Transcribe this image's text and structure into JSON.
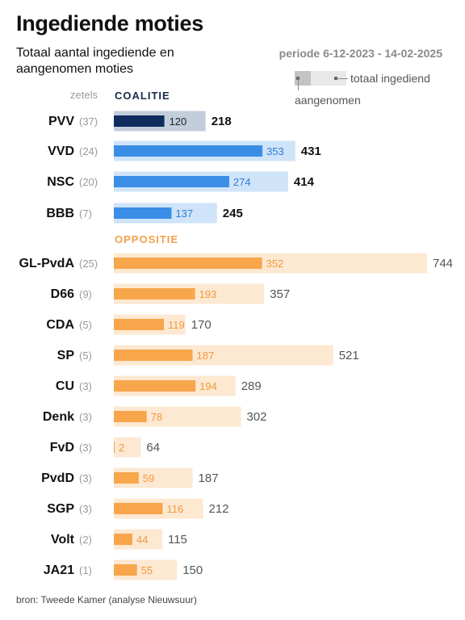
{
  "header": {
    "title": "Ingediende moties",
    "subtitle": "Totaal aantal ingediende en aangenomen moties",
    "period": "periode 6-12-2023 - 14-02-2025"
  },
  "legend": {
    "total_label": "totaal ingediend",
    "adopted_label": "aangenomen"
  },
  "seats_header": "zetels",
  "groups": {
    "coalition": "COALITIE",
    "opposition": "OPPOSITIE"
  },
  "source": "bron: Tweede Kamer (analyse Nieuwsuur)",
  "colors": {
    "pvv_adopted": "#0f2c5e",
    "pvv_total": "#c3cedb",
    "coalition_adopted": "#3a8ee6",
    "coalition_total": "#cfe3f9",
    "opposition_adopted": "#f7a64b",
    "opposition_total": "#fde8d2",
    "coalition_group": "#1b2a4a",
    "opposition_group": "#f2a14a"
  },
  "chart_data": {
    "type": "bar",
    "orientation": "horizontal",
    "categories": [
      "PVV",
      "VVD",
      "NSC",
      "BBB",
      "GL-PvdA",
      "D66",
      "CDA",
      "SP",
      "CU",
      "Denk",
      "FvD",
      "PvdD",
      "SGP",
      "Volt",
      "JA21"
    ],
    "seats": [
      "(37)",
      "(24)",
      "(20)",
      "(7)",
      "(25)",
      "(9)",
      "(5)",
      "(5)",
      "(3)",
      "(3)",
      "(3)",
      "(3)",
      "(3)",
      "(2)",
      "(1)"
    ],
    "group": [
      "coalition",
      "coalition",
      "coalition",
      "coalition",
      "opposition",
      "opposition",
      "opposition",
      "opposition",
      "opposition",
      "opposition",
      "opposition",
      "opposition",
      "opposition",
      "opposition",
      "opposition"
    ],
    "series": [
      {
        "name": "totaal ingediend",
        "values": [
          218,
          431,
          414,
          245,
          744,
          357,
          170,
          521,
          289,
          302,
          64,
          187,
          212,
          115,
          150
        ]
      },
      {
        "name": "aangenomen",
        "values": [
          120,
          353,
          274,
          137,
          352,
          193,
          119,
          187,
          194,
          78,
          2,
          59,
          116,
          44,
          55
        ]
      }
    ],
    "xlim": [
      0,
      744
    ]
  }
}
